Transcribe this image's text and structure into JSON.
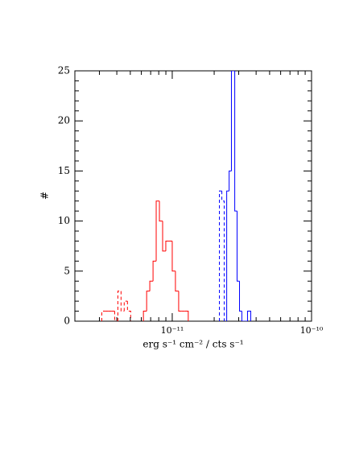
{
  "chart_data": {
    "type": "histogram",
    "x_label": "erg s⁻¹ cm⁻² / cts s⁻¹",
    "y_label": "#",
    "log_x": true,
    "xlim": [
      2e-12,
      1e-10
    ],
    "ylim": [
      0,
      25
    ],
    "xticks": [
      {
        "value": 1e-11,
        "label": "10⁻¹¹"
      },
      {
        "value": 1e-10,
        "label": "10⁻¹⁰"
      }
    ],
    "xminorticks": [
      3e-12,
      4e-12,
      5e-12,
      6e-12,
      7e-12,
      8e-12,
      9e-12,
      2e-11,
      3e-11,
      4e-11,
      5e-11,
      6e-11,
      7e-11,
      8e-11,
      9e-11
    ],
    "yticks": [
      0,
      5,
      10,
      15,
      20,
      25
    ],
    "yminorticks": [
      1,
      2,
      3,
      4,
      6,
      7,
      8,
      9,
      11,
      12,
      13,
      14,
      16,
      17,
      18,
      19,
      21,
      22,
      23,
      24
    ],
    "series": [
      {
        "color": "#ff0000",
        "dashed": false,
        "bins": [
          6.21e-12,
          6.55e-12,
          6.9e-12,
          7.28e-12,
          7.67e-12,
          8.09e-12,
          8.53e-12,
          8.99e-12,
          9.48e-12,
          1e-11,
          1.054e-11,
          1.112e-11,
          1.172e-11,
          1.236e-11,
          1.303e-11
        ],
        "values": [
          1,
          3,
          4,
          6,
          12,
          10,
          7,
          8,
          8,
          5,
          3,
          1,
          1,
          1
        ]
      },
      {
        "color": "#ff0000",
        "dashed": true,
        "bins": [
          3.12e-12,
          3.29e-12,
          3.47e-12,
          3.66e-12,
          3.86e-12,
          4.07e-12,
          4.29e-12,
          4.52e-12,
          4.77e-12,
          5.03e-12
        ],
        "values": [
          1,
          1,
          1,
          1,
          0,
          3,
          1,
          2,
          1
        ]
      },
      {
        "color": "#0000ff",
        "dashed": true,
        "bins": [
          2.18e-11,
          2.27e-11,
          2.36e-11
        ],
        "values": [
          13,
          12
        ]
      },
      {
        "color": "#0000ff",
        "dashed": false,
        "bins": [
          2.46e-11,
          2.56e-11,
          2.66e-11,
          2.81e-11,
          2.92e-11,
          3.04e-11,
          3.16e-11,
          3.47e-11,
          3.66e-11
        ],
        "values": [
          13,
          15,
          25,
          11,
          4,
          1,
          0,
          1
        ]
      }
    ]
  }
}
